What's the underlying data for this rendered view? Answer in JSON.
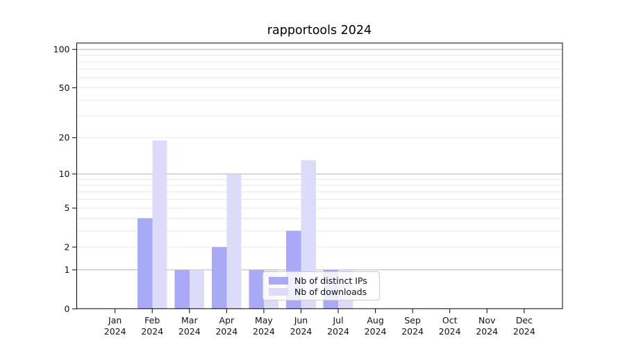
{
  "chart_data": {
    "type": "bar",
    "title": "rapportools 2024",
    "categories": [
      "Jan 2024",
      "Feb 2024",
      "Mar 2024",
      "Apr 2024",
      "May 2024",
      "Jun 2024",
      "Jul 2024",
      "Aug 2024",
      "Sep 2024",
      "Oct 2024",
      "Nov 2024",
      "Dec 2024"
    ],
    "series": [
      {
        "name": "Nb of distinct IPs",
        "color": "#a9a9f5",
        "values": [
          0,
          4,
          1,
          2,
          1,
          3,
          1,
          0,
          0,
          0,
          0,
          0
        ]
      },
      {
        "name": "Nb of downloads",
        "color": "#dcdcfa",
        "values": [
          0,
          19,
          1,
          10,
          1,
          13,
          1,
          0,
          0,
          0,
          0,
          0
        ]
      }
    ],
    "xlabel": "",
    "ylabel": "",
    "y_scale": "log1p",
    "y_ticks": [
      0,
      1,
      2,
      5,
      10,
      20,
      50,
      100
    ],
    "y_major_gridlines": [
      1,
      10,
      100
    ],
    "y_minor_gridlines": [
      2,
      3,
      4,
      5,
      6,
      7,
      8,
      9,
      20,
      30,
      40,
      50,
      60,
      70,
      80,
      90
    ],
    "ylim": [
      0,
      112
    ],
    "grid": true,
    "legend_position": "lower center"
  },
  "colors": {
    "bar_distinct_ips": "#a9a9f5",
    "bar_downloads": "#dcdcfa",
    "major_grid": "#b2b2b2",
    "minor_grid": "#e7e7e7",
    "axis": "#000000",
    "text": "#111111",
    "legend_border": "#cccccc"
  }
}
